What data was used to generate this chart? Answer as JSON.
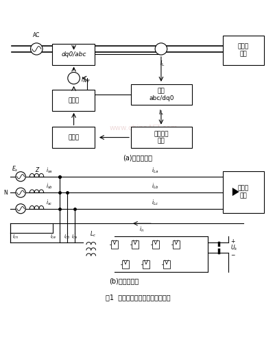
{
  "title": "图1  系统拓扑结构图及工作示意图",
  "subtitle_a": "(a)拓扑结构图",
  "subtitle_b": "(b)工作示意图",
  "bg_color": "#ffffff",
  "fig_width": 4.02,
  "fig_height": 4.92,
  "dpi": 100
}
